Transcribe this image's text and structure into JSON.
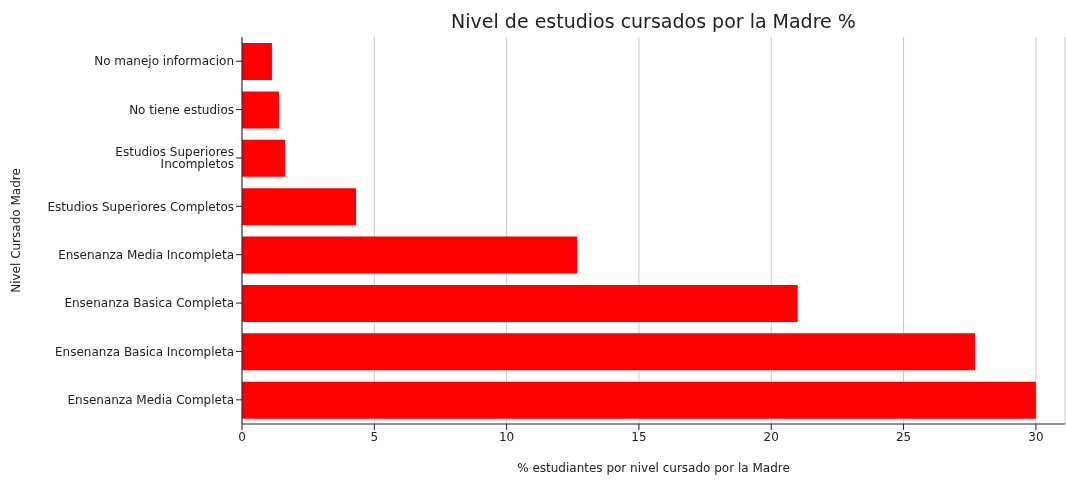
{
  "chart_data": {
    "type": "bar",
    "orientation": "horizontal",
    "title": "Nivel de estudios cursados por la Madre %",
    "xlabel": "% estudiantes por nivel cursado por la Madre",
    "ylabel": "Nivel Cursado Madre",
    "categories": [
      "No manejo informacion",
      "No tiene estudios",
      "Estudios Superiores Incompletos",
      "Estudios Superiores Completos",
      "Ensenanza Media Incompleta",
      "Ensenanza Basica Completa",
      "Ensenanza Basica Incompleta",
      "Ensenanza Media Completa"
    ],
    "values": [
      1.13,
      1.4,
      1.63,
      4.31,
      12.67,
      21.0,
      27.7,
      30.0
    ],
    "color": "#ff0000",
    "xlim": [
      0,
      31.1
    ],
    "xticks": [
      0,
      5,
      10,
      15,
      20,
      25,
      30
    ],
    "grid": "x"
  }
}
